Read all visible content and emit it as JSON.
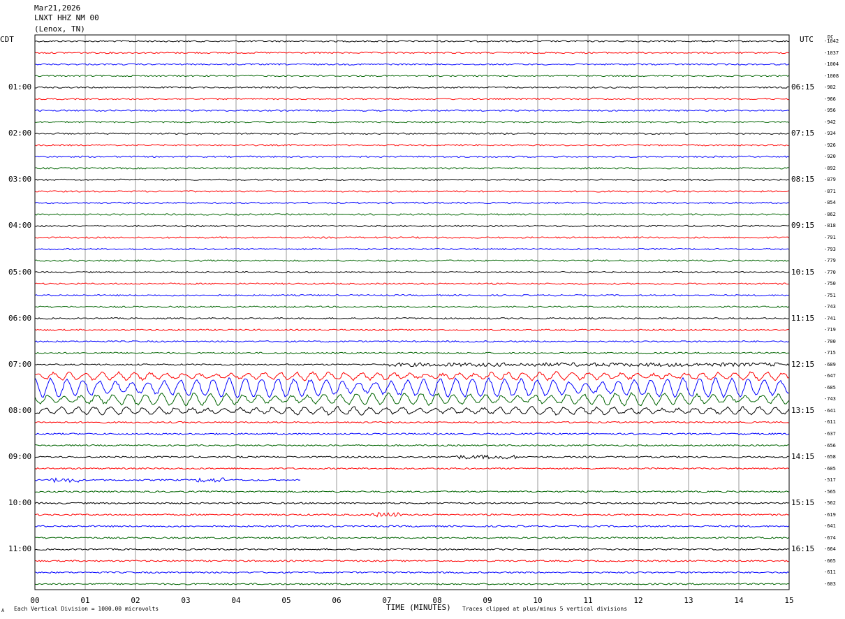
{
  "header": {
    "date": "Mar21,2026",
    "station": "LNXT HHZ NM 00",
    "location": "(Lenox, TN)"
  },
  "corners": {
    "left_tz": "CDT",
    "right_tz": "UTC",
    "dc_label": "DC"
  },
  "footer": {
    "scale_note": "Each Vertical Division = 1000.00 microvolts",
    "clip_note": "Traces clipped at plus/minus 5 vertical divisions",
    "mark": "A"
  },
  "colors": {
    "trace_cycle": [
      "#000000",
      "#ff0000",
      "#0000ff",
      "#006400"
    ],
    "grid": "#808080"
  },
  "chart_data": {
    "type": "line",
    "title": "",
    "xlabel": "TIME (MINUTES)",
    "x_ticks": [
      "00",
      "01",
      "02",
      "03",
      "04",
      "05",
      "06",
      "07",
      "08",
      "09",
      "10",
      "11",
      "12",
      "13",
      "14",
      "15"
    ],
    "xlim": [
      0,
      15
    ],
    "grid": "vertical lines every minute",
    "rows_per_hour": 4,
    "left_hour_labels": [
      "01:00",
      "02:00",
      "03:00",
      "04:00",
      "05:00",
      "06:00",
      "07:00",
      "08:00",
      "09:00",
      "10:00",
      "11:00"
    ],
    "right_hour_labels": [
      "06:15",
      "07:15",
      "08:15",
      "09:15",
      "10:15",
      "11:15",
      "12:15",
      "13:15",
      "14:15",
      "15:15",
      "16:15"
    ],
    "dc_offsets": [
      "-1042",
      "-1037",
      "-1004",
      "-1008",
      "-982",
      "-966",
      "-956",
      "-942",
      "-934",
      "-926",
      "-920",
      "-892",
      "-879",
      "-871",
      "-854",
      "-862",
      "-818",
      "-791",
      "-793",
      "-779",
      "-770",
      "-750",
      "-751",
      "-743",
      "-741",
      "-719",
      "-700",
      "-715",
      "-689",
      "-647",
      "-685",
      "-743",
      "-641",
      "-611",
      "-637",
      "-656",
      "-658",
      "-605",
      "-517",
      "-565",
      "-562",
      "-619",
      "-641",
      "-674",
      "-664",
      "-665",
      "-611",
      "-603"
    ],
    "activity_note": "Large surface-wave oscillations on rows 29-32 (07:15-08:00 CDT); trace row 38 ends near minute 5.3"
  }
}
